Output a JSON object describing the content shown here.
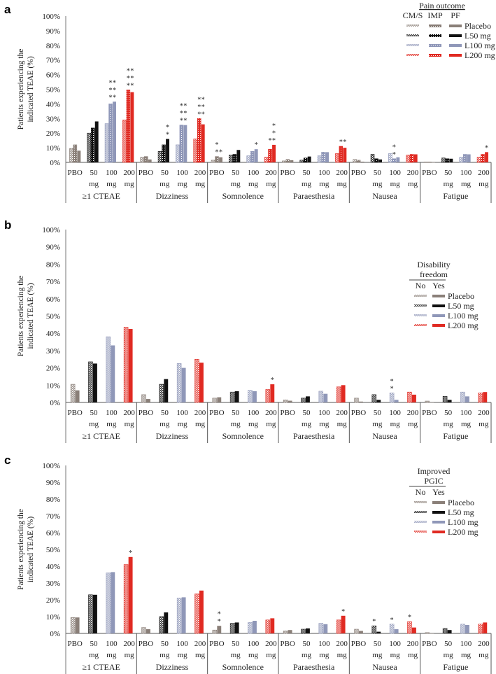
{
  "colors": {
    "Placebo": "#8a7f78",
    "L50 mg": "#111111",
    "L100 mg": "#8f97b8",
    "L200 mg": "#e02a22"
  },
  "chart_data": [
    {
      "type": "bar",
      "panel": "a",
      "ylabel": "Patients experiencing the indicated TEAE (%)",
      "ylim": [
        0,
        100
      ],
      "yticks": [
        "0%",
        "10%",
        "20%",
        "30%",
        "40%",
        "50%",
        "60%",
        "70%",
        "80%",
        "90%",
        "100%"
      ],
      "legend": {
        "title": "Pain outcome",
        "subgroups": [
          "CM/S",
          "IMP",
          "PF"
        ],
        "entries": [
          "Placebo",
          "L50 mg",
          "L100 mg",
          "L200 mg"
        ],
        "placement": "top-right"
      },
      "doses": [
        [
          "PBO",
          ""
        ],
        [
          "50",
          "mg"
        ],
        [
          "100",
          "mg"
        ],
        [
          "200",
          "mg"
        ]
      ],
      "categories": [
        "≥1 CTEAE",
        "Dizziness",
        "Somnolence",
        "Paraesthesia",
        "Nausea",
        "Fatigue"
      ],
      "values": [
        [
          [
            9.5,
            12,
            8
          ],
          [
            20,
            23.5,
            28
          ],
          [
            26.5,
            40,
            41.5
          ],
          [
            29,
            49.5,
            48
          ]
        ],
        [
          [
            3.5,
            4,
            2
          ],
          [
            7.5,
            12,
            16
          ],
          [
            12,
            25.5,
            25.5
          ],
          [
            16,
            30,
            26
          ]
        ],
        [
          [
            1.5,
            4,
            3.5
          ],
          [
            5,
            5.5,
            8.5
          ],
          [
            4.5,
            7.5,
            9
          ],
          [
            3.5,
            9,
            12
          ]
        ],
        [
          [
            1,
            2,
            1.5
          ],
          [
            1.5,
            3,
            4
          ],
          [
            4.5,
            7,
            7
          ],
          [
            6,
            11,
            10
          ]
        ],
        [
          [
            2,
            1.5,
            0.5
          ],
          [
            5.5,
            2.5,
            2
          ],
          [
            6,
            2.5,
            3.5
          ],
          [
            5,
            5.5,
            5.5
          ]
        ],
        [
          [
            0.3,
            0.3,
            0
          ],
          [
            3,
            2.5,
            2.5
          ],
          [
            3.5,
            5.5,
            5.5
          ],
          [
            3.5,
            5.5,
            7
          ]
        ]
      ],
      "annotations": [
        [
          [
            "",
            "",
            ""
          ],
          [
            "",
            "",
            ""
          ],
          [
            "",
            "***",
            "***"
          ],
          [
            "",
            "***",
            "***"
          ]
        ],
        [
          [
            "",
            "",
            ""
          ],
          [
            "",
            "",
            "**"
          ],
          [
            "",
            "***",
            "***"
          ],
          [
            "",
            "***",
            "***"
          ]
        ],
        [
          [
            "",
            "**",
            "*"
          ],
          [
            "",
            "",
            ""
          ],
          [
            "",
            "",
            "*"
          ],
          [
            "",
            "*",
            "***"
          ]
        ],
        [
          [
            "",
            "",
            ""
          ],
          [
            "",
            "",
            ""
          ],
          [
            "",
            "",
            ""
          ],
          [
            "",
            "*",
            "*"
          ]
        ],
        [
          [
            "",
            "",
            ""
          ],
          [
            "",
            "",
            ""
          ],
          [
            "",
            "**",
            ""
          ],
          [
            "",
            "",
            ""
          ]
        ],
        [
          [
            "",
            "",
            ""
          ],
          [
            "",
            "",
            ""
          ],
          [
            "",
            "",
            ""
          ],
          [
            "",
            "",
            "*"
          ]
        ]
      ]
    },
    {
      "type": "bar",
      "panel": "b",
      "ylabel": "Patients experiencing the indicated TEAE (%)",
      "ylim": [
        0,
        100
      ],
      "yticks": [
        "0%",
        "10%",
        "20%",
        "30%",
        "40%",
        "50%",
        "60%",
        "70%",
        "80%",
        "90%",
        "100%"
      ],
      "legend": {
        "title": "Disability freedom",
        "title_lines": [
          "Disability",
          "freedom"
        ],
        "subgroups": [
          "No",
          "Yes"
        ],
        "entries": [
          "Placebo",
          "L50 mg",
          "L100 mg",
          "L200 mg"
        ],
        "placement": "right"
      },
      "doses": [
        [
          "PBO",
          ""
        ],
        [
          "50",
          "mg"
        ],
        [
          "100",
          "mg"
        ],
        [
          "200",
          "mg"
        ]
      ],
      "categories": [
        "≥1 CTEAE",
        "Dizziness",
        "Somnolence",
        "Paraesthesia",
        "Nausea",
        "Fatigue"
      ],
      "values": [
        [
          [
            10.5,
            7
          ],
          [
            23.5,
            22.5
          ],
          [
            38,
            33
          ],
          [
            43.5,
            42.5
          ]
        ],
        [
          [
            4.5,
            2
          ],
          [
            10.5,
            13.5
          ],
          [
            22.5,
            20
          ],
          [
            25,
            23
          ]
        ],
        [
          [
            2.5,
            3
          ],
          [
            6,
            6.5
          ],
          [
            7,
            6.5
          ],
          [
            7.5,
            10.5
          ]
        ],
        [
          [
            1.5,
            1
          ],
          [
            2.5,
            3.5
          ],
          [
            6.5,
            5
          ],
          [
            9,
            10
          ]
        ],
        [
          [
            2.5,
            0.5
          ],
          [
            4.5,
            1.5
          ],
          [
            5.5,
            1.5
          ],
          [
            6,
            4.5
          ]
        ],
        [
          [
            0.8,
            0
          ],
          [
            3.5,
            1.5
          ],
          [
            6,
            3.5
          ],
          [
            5.5,
            6
          ]
        ]
      ],
      "annotations": [
        [
          [
            "",
            ""
          ],
          [
            "",
            ""
          ],
          [
            "",
            ""
          ],
          [
            "",
            ""
          ]
        ],
        [
          [
            "",
            ""
          ],
          [
            "",
            ""
          ],
          [
            "",
            ""
          ],
          [
            "",
            ""
          ]
        ],
        [
          [
            "",
            ""
          ],
          [
            "",
            ""
          ],
          [
            "",
            ""
          ],
          [
            "",
            "*"
          ]
        ],
        [
          [
            "",
            ""
          ],
          [
            "",
            ""
          ],
          [
            "",
            ""
          ],
          [
            "",
            ""
          ]
        ],
        [
          [
            "",
            ""
          ],
          [
            "",
            ""
          ],
          [
            "**",
            ""
          ],
          [
            "",
            ""
          ]
        ],
        [
          [
            "",
            ""
          ],
          [
            "",
            ""
          ],
          [
            "",
            ""
          ],
          [
            "",
            ""
          ]
        ]
      ]
    },
    {
      "type": "bar",
      "panel": "c",
      "ylabel": "Patients experiencing the indicated TEAE (%)",
      "ylim": [
        0,
        100
      ],
      "yticks": [
        "0%",
        "10%",
        "20%",
        "30%",
        "40%",
        "50%",
        "60%",
        "70%",
        "80%",
        "90%",
        "100%"
      ],
      "legend": {
        "title": "Improved PGIC",
        "title_lines": [
          "Improved",
          "PGIC"
        ],
        "subgroups": [
          "No",
          "Yes"
        ],
        "entries": [
          "Placebo",
          "L50 mg",
          "L100 mg",
          "L200 mg"
        ],
        "placement": "right"
      },
      "doses": [
        [
          "PBO",
          ""
        ],
        [
          "50",
          "mg"
        ],
        [
          "100",
          "mg"
        ],
        [
          "200",
          "mg"
        ]
      ],
      "categories": [
        "≥1 CTEAE",
        "Dizziness",
        "Somnolence",
        "Paraesthesia",
        "Nausea",
        "Fatigue"
      ],
      "values": [
        [
          [
            9.5,
            9.5
          ],
          [
            23,
            23
          ],
          [
            36,
            36.5
          ],
          [
            41,
            45.5
          ]
        ],
        [
          [
            3.5,
            2.5
          ],
          [
            10,
            12.5
          ],
          [
            21,
            21.5
          ],
          [
            23.5,
            25.5
          ]
        ],
        [
          [
            2,
            4.5
          ],
          [
            6,
            6.5
          ],
          [
            6.5,
            7.5
          ],
          [
            8,
            9
          ]
        ],
        [
          [
            1.5,
            2
          ],
          [
            2.5,
            3
          ],
          [
            6,
            5.5
          ],
          [
            8,
            10.5
          ]
        ],
        [
          [
            2.5,
            1.5
          ],
          [
            4.5,
            1
          ],
          [
            5.5,
            2.5
          ],
          [
            7,
            3.5
          ]
        ],
        [
          [
            0.5,
            0
          ],
          [
            3,
            2
          ],
          [
            5.5,
            5
          ],
          [
            5.5,
            6.5
          ]
        ]
      ],
      "annotations": [
        [
          [
            "",
            ""
          ],
          [
            "",
            ""
          ],
          [
            "",
            ""
          ],
          [
            "",
            "*"
          ]
        ],
        [
          [
            "",
            ""
          ],
          [
            "",
            ""
          ],
          [
            "",
            ""
          ],
          [
            "",
            ""
          ]
        ],
        [
          [
            "",
            "**"
          ],
          [
            "",
            ""
          ],
          [
            "",
            ""
          ],
          [
            "",
            ""
          ]
        ],
        [
          [
            "",
            ""
          ],
          [
            "",
            ""
          ],
          [
            "",
            ""
          ],
          [
            "",
            "*"
          ]
        ],
        [
          [
            "",
            ""
          ],
          [
            "*",
            ""
          ],
          [
            "*",
            ""
          ],
          [
            "*",
            ""
          ]
        ],
        [
          [
            "",
            ""
          ],
          [
            "",
            ""
          ],
          [
            "",
            ""
          ],
          [
            "",
            ""
          ]
        ]
      ]
    }
  ]
}
